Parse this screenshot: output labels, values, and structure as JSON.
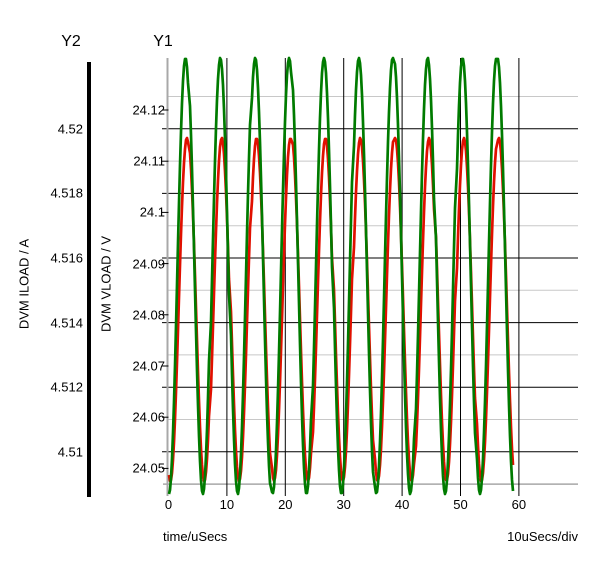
{
  "plot": {
    "y2_header": "Y2",
    "y1_header": "Y1",
    "y2_axis_title": "DVM ILOAD / A",
    "y1_axis_title": "DVM VLOAD / V",
    "x_axis_title": "time/uSecs",
    "x_scale_label": "10uSecs/div"
  },
  "colors": {
    "background": "#ffffff",
    "trace_green": "#007b00",
    "trace_red": "#e01000",
    "grid_major": "#000000",
    "grid_minor": "#c8c8c8",
    "axis_spine": "#a8a8a8",
    "text": "#000000"
  },
  "chart_data": {
    "type": "line",
    "title": "",
    "x_axis": {
      "label": "time/uSecs",
      "div_label": "10uSecs/div",
      "units_per_div": 10,
      "tick_labels": [
        "0",
        "10",
        "20",
        "30",
        "40",
        "50",
        "60"
      ],
      "tick_values": [
        0,
        10,
        20,
        30,
        40,
        50,
        60
      ],
      "range": [
        0,
        70
      ]
    },
    "y1_axis": {
      "label": "DVM VLOAD / V",
      "tick_labels": [
        "24.12",
        "24.11",
        "24.1",
        "24.09",
        "24.08",
        "24.07",
        "24.06",
        "24.05"
      ],
      "tick_values": [
        24.12,
        24.11,
        24.1,
        24.09,
        24.08,
        24.07,
        24.06,
        24.05
      ],
      "visible_range": [
        24.044,
        24.13
      ]
    },
    "y2_axis": {
      "label": "DVM ILOAD / A",
      "tick_labels": [
        "4.52",
        "4.518",
        "4.516",
        "4.514",
        "4.512",
        "4.51"
      ],
      "tick_values": [
        4.52,
        4.518,
        4.516,
        4.514,
        4.512,
        4.51
      ],
      "visible_range": [
        4.5085,
        4.5225
      ]
    },
    "grid": {
      "h_major_every_y2": 0.002,
      "h_minor_every_y2": 0.001,
      "v_major_every_us": 10
    },
    "series": [
      {
        "name": "DVM VLOAD",
        "axis": "y1",
        "color": "#e01000",
        "shape": "sine",
        "period_us": 5.92,
        "t_start": 0,
        "t_end": 59.1,
        "min_at_t": 0.25,
        "min": 24.0475,
        "max": 24.1145
      },
      {
        "name": "DVM ILOAD",
        "axis": "y2",
        "color": "#007b00",
        "shape": "sine",
        "period_us": 5.92,
        "t_start": 0,
        "t_end": 59.1,
        "min_at_t": 0,
        "min": 4.5087,
        "max": 4.5222
      }
    ]
  }
}
